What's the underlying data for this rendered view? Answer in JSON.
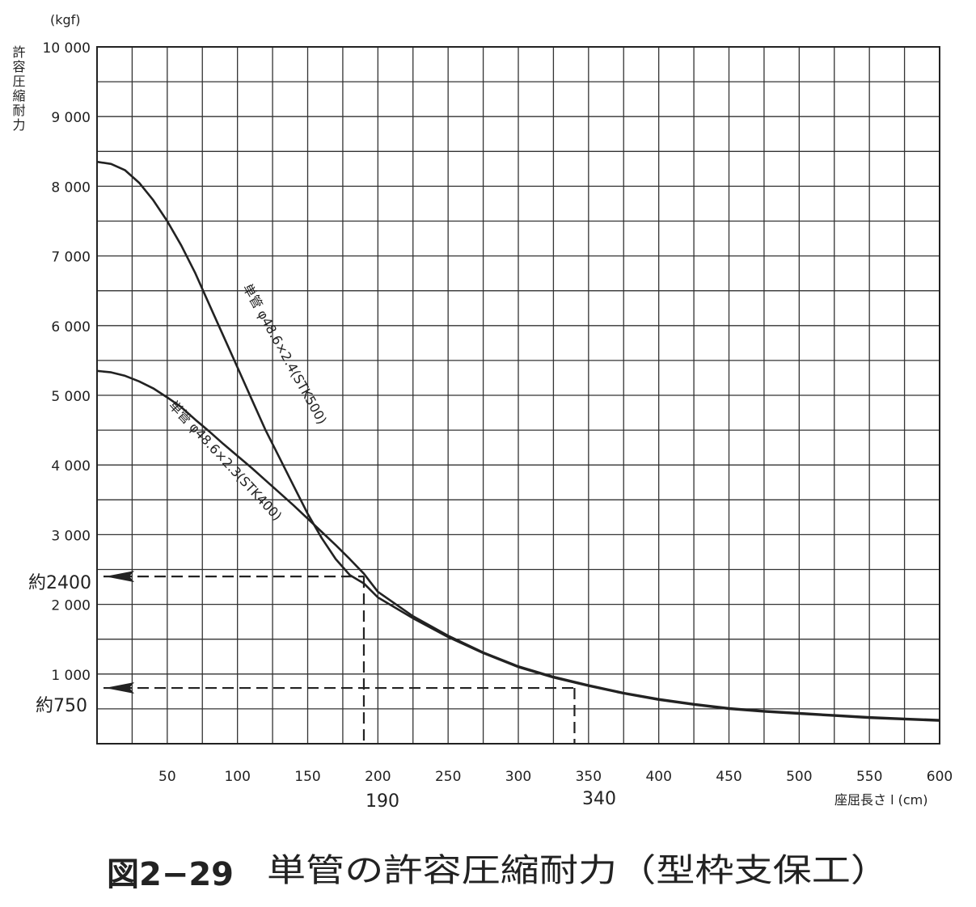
{
  "figure": {
    "number": "図2−29",
    "caption": "単管の許容圧縮耐力（型枠支保工）"
  },
  "chart_data": {
    "type": "line",
    "ylabel": "許容圧縮耐力",
    "yunit": "(kgf)",
    "xlabel": "座屈長さ l  (cm)",
    "xlim": [
      0,
      600
    ],
    "ylim": [
      0,
      10000
    ],
    "x_ticks": [
      50,
      100,
      150,
      200,
      250,
      300,
      350,
      400,
      450,
      500,
      550,
      600
    ],
    "x_tick_labels": [
      "50",
      "100",
      "150",
      "200",
      "250",
      "300",
      "350",
      "400",
      "450",
      "500",
      "550",
      "600"
    ],
    "y_ticks": [
      1000,
      2000,
      3000,
      4000,
      5000,
      6000,
      7000,
      8000,
      9000,
      10000
    ],
    "y_tick_labels": [
      "1 000",
      "2 000",
      "3 000",
      "4 000",
      "5 000",
      "6 000",
      "7 000",
      "8 000",
      "9 000",
      "10 000"
    ],
    "grid": true,
    "series": [
      {
        "name": "単管 φ48.6×2.4(STK500)",
        "x": [
          0,
          10,
          20,
          30,
          40,
          50,
          60,
          70,
          80,
          90,
          100,
          110,
          120,
          130,
          140,
          150,
          160,
          170,
          180,
          190,
          200,
          225,
          250,
          275,
          300,
          325,
          350,
          375,
          400,
          425,
          450,
          475,
          500,
          525,
          550,
          575,
          600
        ],
        "y": [
          8350,
          8320,
          8230,
          8050,
          7800,
          7500,
          7150,
          6750,
          6300,
          5850,
          5400,
          4950,
          4500,
          4100,
          3700,
          3300,
          2950,
          2650,
          2420,
          2300,
          2100,
          1800,
          1530,
          1300,
          1100,
          950,
          830,
          720,
          630,
          560,
          500,
          460,
          430,
          400,
          370,
          350,
          330
        ]
      },
      {
        "name": "単管 φ48.6×2.3(STK400)",
        "x": [
          0,
          10,
          20,
          30,
          40,
          50,
          60,
          70,
          80,
          90,
          100,
          110,
          120,
          130,
          140,
          150,
          160,
          170,
          180,
          190,
          200,
          225,
          250,
          275,
          300,
          325,
          350,
          375,
          400,
          425,
          450,
          475,
          500,
          525,
          550,
          575,
          600
        ],
        "y": [
          5350,
          5330,
          5280,
          5200,
          5100,
          4970,
          4830,
          4650,
          4480,
          4300,
          4130,
          3960,
          3780,
          3600,
          3420,
          3230,
          3040,
          2850,
          2650,
          2440,
          2180,
          1830,
          1550,
          1310,
          1110,
          960,
          840,
          730,
          640,
          570,
          510,
          470,
          440,
          410,
          380,
          360,
          340
        ]
      }
    ],
    "annotations": [
      {
        "label": "約2400",
        "x": 190,
        "y": 2400,
        "x_label": "190"
      },
      {
        "label": "約750",
        "x": 340,
        "y": 800,
        "x_label": "340"
      }
    ]
  }
}
